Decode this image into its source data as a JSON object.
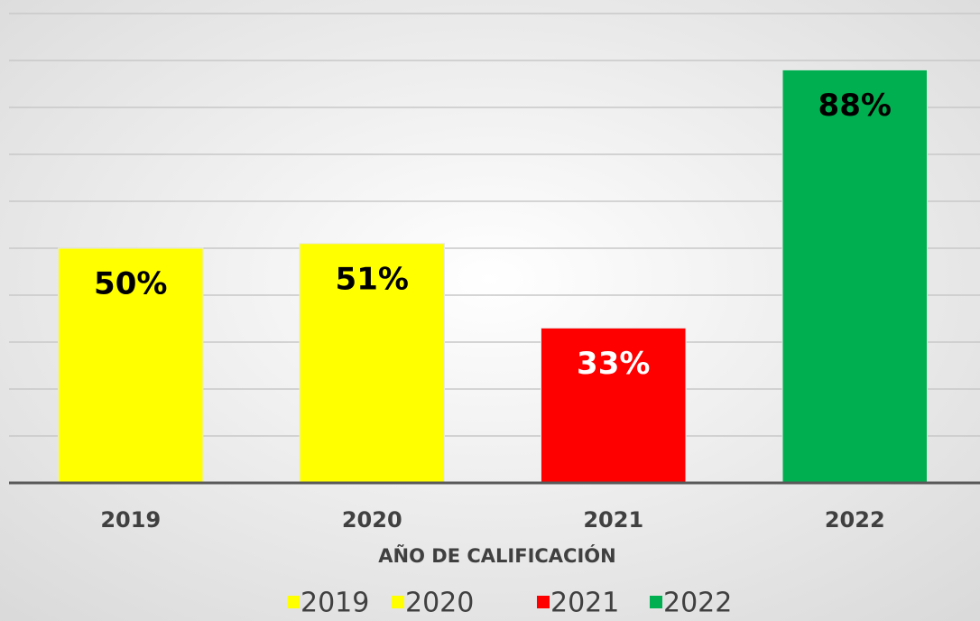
{
  "chart_data": {
    "type": "bar",
    "categories": [
      "2019",
      "2020",
      "2021",
      "2022"
    ],
    "values": [
      50,
      51,
      33,
      88
    ],
    "value_labels": [
      "50%",
      "51%",
      "33%",
      "88%"
    ],
    "colors": [
      "#ffff00",
      "#ffff00",
      "#ff0000",
      "#00b050"
    ],
    "label_colors": [
      "#000000",
      "#000000",
      "#ffffff",
      "#000000"
    ],
    "x_label": "AÑO DE CALIFICACIÓN",
    "ylim": [
      0,
      100
    ],
    "yticks": [
      0,
      10,
      20,
      30,
      40,
      50,
      60,
      70,
      80,
      90,
      100
    ],
    "grid": true,
    "legend": "bottom"
  }
}
